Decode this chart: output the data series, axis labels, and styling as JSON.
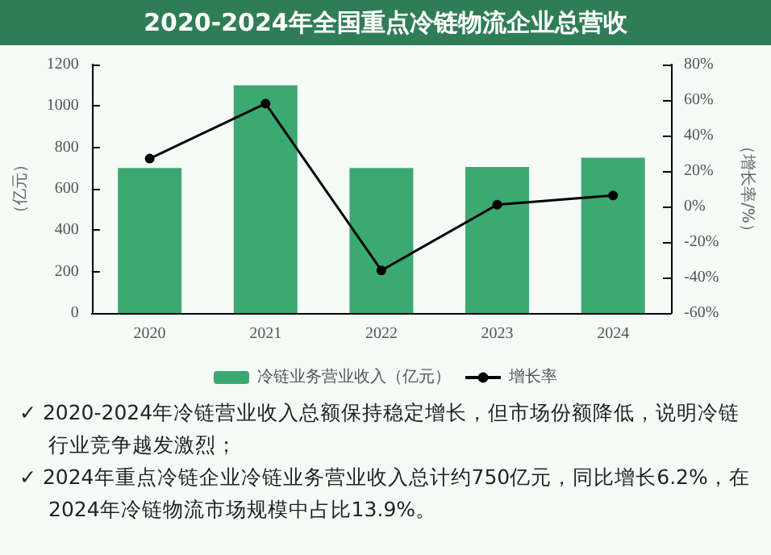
{
  "chart_data": {
    "type": "bar",
    "title": "2020-2024年全国重点冷链物流企业总营收",
    "categories": [
      "2020",
      "2021",
      "2022",
      "2023",
      "2024"
    ],
    "series": [
      {
        "name": "冷链业务营业收入（亿元）",
        "color": "#3aaa72",
        "values": [
          700,
          1100,
          700,
          705,
          750
        ]
      },
      {
        "name": "增长率",
        "type": "line",
        "axis": "y2",
        "color": "#000000",
        "values": [
          27,
          58,
          -36,
          1,
          6.2
        ]
      }
    ],
    "ylabel": "（亿元）",
    "y2label": "（增长率/%）",
    "ylim": [
      0,
      1200
    ],
    "yticks": [
      0,
      200,
      400,
      600,
      800,
      1000,
      1200
    ],
    "y2lim": [
      -60,
      80
    ],
    "y2ticks": [
      {
        "value": -60,
        "label": "-60%"
      },
      {
        "value": -40,
        "label": "-40%"
      },
      {
        "value": -20,
        "label": "-20%"
      },
      {
        "value": 0,
        "label": "0%"
      },
      {
        "value": 20,
        "label": "20%"
      },
      {
        "value": 40,
        "label": "40%"
      },
      {
        "value": 60,
        "label": "60%"
      },
      {
        "value": 80,
        "label": "80%"
      }
    ],
    "grid": false,
    "legend": "bottom",
    "marker": "circle",
    "annotations": [
      "✓ 2020-2024年冷链营业收入总额保持稳定增长，但市场份额降低，说明冷链行业竞争越发激烈；",
      "✓ 2024年重点冷链企业冷链业务营业收入总计约750亿元，同比增长6.2%，在2024年冷链物流市场规模中占比13.9%。"
    ]
  }
}
